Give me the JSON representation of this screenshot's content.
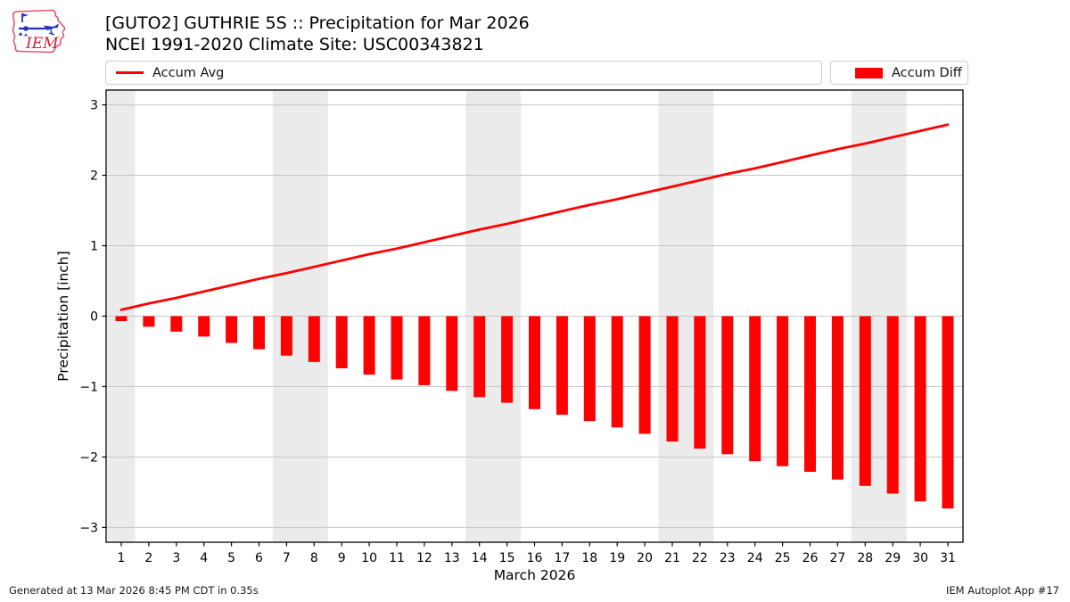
{
  "header": {
    "logo_text": "IEM",
    "title_line1": "[GUTO2] GUTHRIE 5S :: Precipitation for Mar 2026",
    "title_line2": "NCEI 1991-2020 Climate Site: USC00343821"
  },
  "legend": {
    "avg_label": "Accum Avg",
    "diff_label": "Accum Diff",
    "swatch_color": "#ff0000"
  },
  "footer": {
    "generated": "Generated at 13 Mar 2026 8:45 PM CDT in 0.35s",
    "app": "IEM Autoplot App #17"
  },
  "chart_data": {
    "type": "bar",
    "title": "[GUTO2] GUTHRIE 5S :: Precipitation for Mar 2026",
    "subtitle": "NCEI 1991-2020 Climate Site: USC00343821",
    "xlabel": "March 2026",
    "ylabel": "Precipitation [inch]",
    "x": [
      1,
      2,
      3,
      4,
      5,
      6,
      7,
      8,
      9,
      10,
      11,
      12,
      13,
      14,
      15,
      16,
      17,
      18,
      19,
      20,
      21,
      22,
      23,
      24,
      25,
      26,
      27,
      28,
      29,
      30,
      31
    ],
    "series": [
      {
        "name": "Accum Avg",
        "render": "line",
        "color": "#ff0000",
        "values": [
          0.09,
          0.18,
          0.26,
          0.35,
          0.44,
          0.53,
          0.61,
          0.7,
          0.79,
          0.88,
          0.96,
          1.05,
          1.14,
          1.23,
          1.31,
          1.4,
          1.49,
          1.58,
          1.66,
          1.75,
          1.84,
          1.93,
          2.02,
          2.1,
          2.19,
          2.28,
          2.37,
          2.45,
          2.54,
          2.63,
          2.72
        ]
      },
      {
        "name": "Accum Diff",
        "render": "bar",
        "color": "#ff0000",
        "values": [
          -0.07,
          -0.15,
          -0.22,
          -0.29,
          -0.38,
          -0.47,
          -0.56,
          -0.65,
          -0.74,
          -0.83,
          -0.9,
          -0.98,
          -1.06,
          -1.15,
          -1.23,
          -1.32,
          -1.4,
          -1.49,
          -1.58,
          -1.67,
          -1.78,
          -1.88,
          -1.96,
          -2.06,
          -2.13,
          -2.21,
          -2.32,
          -2.41,
          -2.52,
          -2.63,
          -2.73
        ]
      }
    ],
    "xlim": [
      0.45,
      31.55
    ],
    "ylim": [
      -3.21,
      3.21
    ],
    "yticks": [
      -3,
      -2,
      -1,
      0,
      1,
      2,
      3
    ],
    "grid": "horizontal",
    "legend_position": "top",
    "weekend_bands": [
      [
        0.5,
        1.5
      ],
      [
        6.5,
        8.5
      ],
      [
        13.5,
        15.5
      ],
      [
        20.5,
        22.5
      ],
      [
        27.5,
        29.5
      ]
    ],
    "band_color": "#ebebeb",
    "grid_color": "#c6c6c6",
    "spine_color": "#000000",
    "background": "#ffffff"
  }
}
